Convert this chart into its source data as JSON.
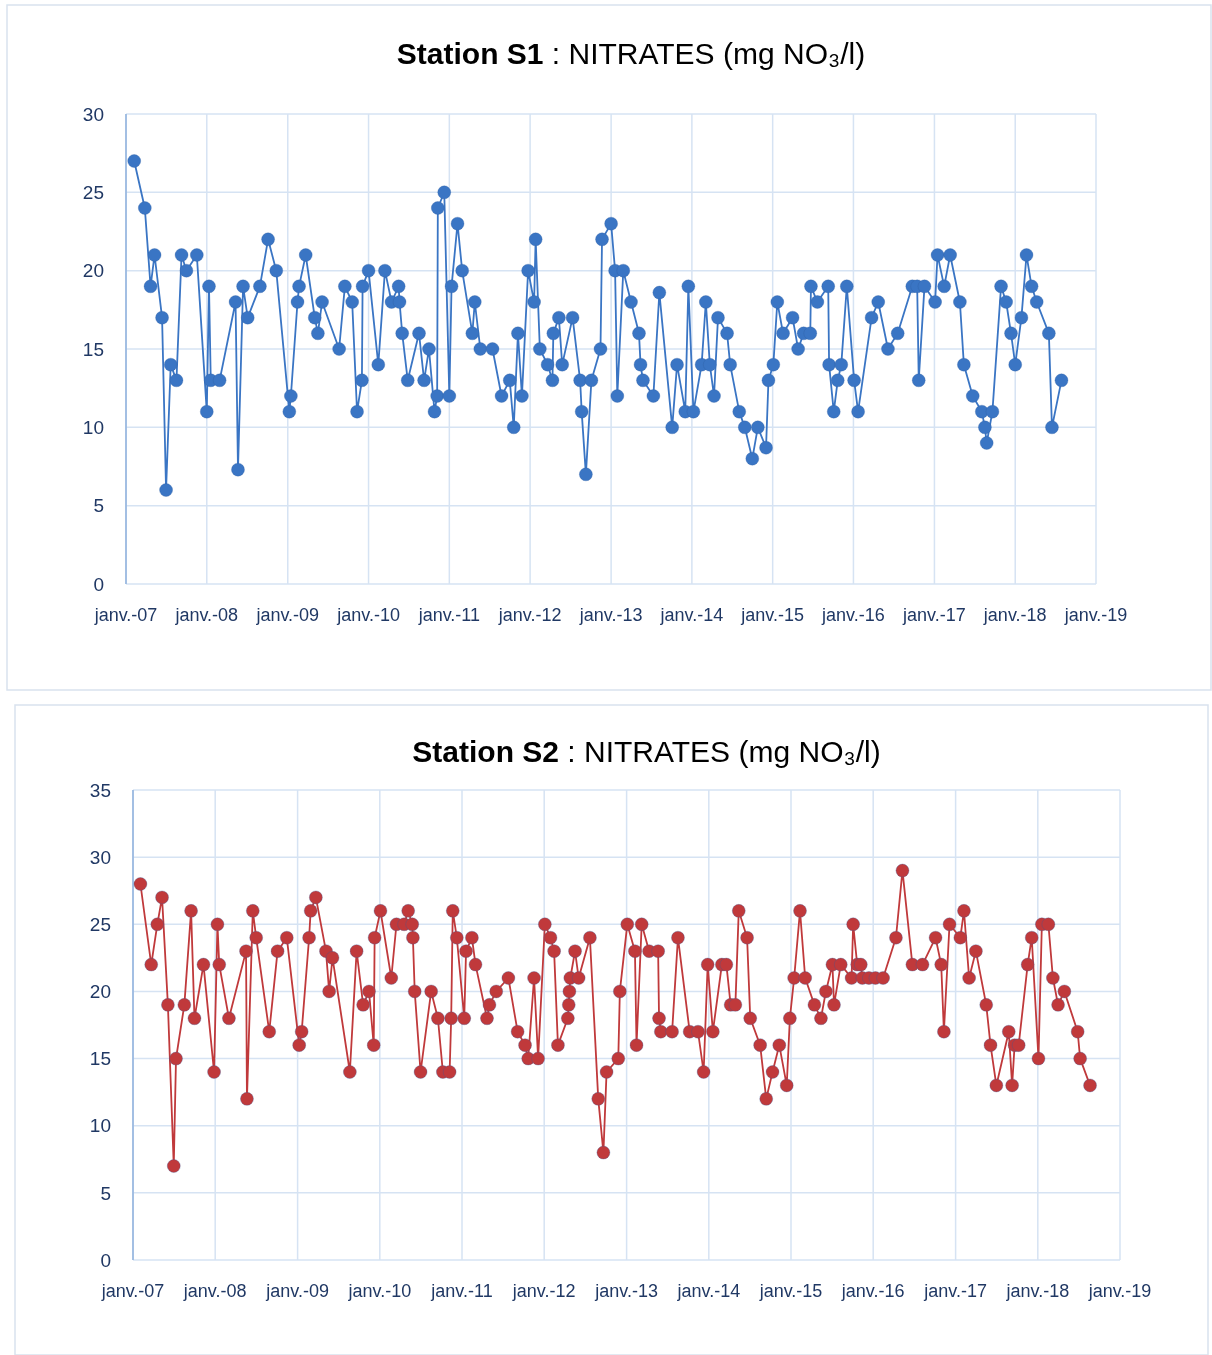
{
  "chart_data": [
    {
      "type": "line",
      "title": "Station S1 : NITRATES  (mg NO₃/l)",
      "xlim": [
        "2007-01",
        "2019-01"
      ],
      "xticks": [
        {
          "value": "2007-01",
          "label": "janv.-07"
        },
        {
          "value": "2008-01",
          "label": "janv.-08"
        },
        {
          "value": "2009-01",
          "label": "janv.-09"
        },
        {
          "value": "2010-01",
          "label": "janv.-10"
        },
        {
          "value": "2011-01",
          "label": "janv.-11"
        },
        {
          "value": "2012-01",
          "label": "janv.-12"
        },
        {
          "value": "2013-01",
          "label": "janv.-13"
        },
        {
          "value": "2014-01",
          "label": "janv.-14"
        },
        {
          "value": "2015-01",
          "label": "janv.-15"
        },
        {
          "value": "2016-01",
          "label": "janv.-16"
        },
        {
          "value": "2017-01",
          "label": "janv.-17"
        },
        {
          "value": "2018-01",
          "label": "janv.-18"
        },
        {
          "value": "2019-01",
          "label": "janv.-19"
        }
      ],
      "ylim": [
        0,
        30
      ],
      "yticks": [
        0,
        5,
        10,
        15,
        20,
        25,
        30
      ],
      "grid": true,
      "marker": "circle",
      "line_style": "solid",
      "series": [
        {
          "color": "#3a75c4",
          "x": [
            "2007-02-07",
            "2007-03-27",
            "2007-04-22",
            "2007-05-10",
            "2007-06-13",
            "2007-07-01",
            "2007-07-22",
            "2007-08-17",
            "2007-09-09",
            "2007-10-01",
            "2007-11-17",
            "2008-01-01",
            "2008-01-11",
            "2008-01-19",
            "2008-02-28",
            "2008-05-10",
            "2008-05-21",
            "2008-06-13",
            "2008-07-04",
            "2008-08-28",
            "2008-10-04",
            "2008-11-10",
            "2009-01-08",
            "2009-01-15",
            "2009-02-14",
            "2009-02-21",
            "2009-03-23",
            "2009-05-03",
            "2009-05-17",
            "2009-06-05",
            "2009-08-21",
            "2009-09-16",
            "2009-10-19",
            "2009-11-10",
            "2009-12-02",
            "2009-12-05",
            "2010-01-01",
            "2010-02-14",
            "2010-03-16",
            "2010-04-15",
            "2010-05-17",
            "2010-05-21",
            "2010-06-02",
            "2010-06-27",
            "2010-08-17",
            "2010-09-09",
            "2010-10-01",
            "2010-10-26",
            "2010-11-07",
            "2010-11-10",
            "2010-12-09",
            "2011-01-01",
            "2011-01-11",
            "2011-02-07",
            "2011-02-28",
            "2011-04-15",
            "2011-04-26",
            "2011-05-21",
            "2011-07-15",
            "2011-08-25",
            "2011-10-01",
            "2011-10-19",
            "2011-11-07",
            "2011-11-25",
            "2011-12-23",
            "2012-01-19",
            "2012-01-26",
            "2012-02-14",
            "2012-03-20",
            "2012-04-11",
            "2012-04-15",
            "2012-05-10",
            "2012-05-25",
            "2012-07-11",
            "2012-08-14",
            "2012-08-21",
            "2012-09-09",
            "2012-10-04",
            "2012-11-14",
            "2012-11-21",
            "2013-01-01",
            "2013-01-19",
            "2013-01-29",
            "2013-02-25",
            "2013-04-01",
            "2013-05-07",
            "2013-05-14",
            "2013-05-25",
            "2013-07-11",
            "2013-08-07",
            "2013-10-04",
            "2013-10-26",
            "2013-12-02",
            "2013-12-16",
            "2014-01-08",
            "2014-02-14",
            "2014-03-05",
            "2014-03-23",
            "2014-04-11",
            "2014-04-29",
            "2014-06-09",
            "2014-06-23",
            "2014-08-03",
            "2014-08-28",
            "2014-10-01",
            "2014-10-26",
            "2014-12-02",
            "2014-12-13",
            "2015-01-04",
            "2015-01-22",
            "2015-02-17",
            "2015-04-01",
            "2015-04-26",
            "2015-05-21",
            "2015-06-20",
            "2015-06-23",
            "2015-07-22",
            "2015-09-09",
            "2015-09-13",
            "2015-10-04",
            "2015-10-22",
            "2015-11-07",
            "2015-12-02",
            "2016-01-04",
            "2016-01-22",
            "2016-03-23",
            "2016-04-22",
            "2016-06-05",
            "2016-07-19",
            "2016-09-23",
            "2016-10-15",
            "2016-10-22",
            "2016-11-17",
            "2017-01-04",
            "2017-01-15",
            "2017-02-14",
            "2017-03-13",
            "2017-04-26",
            "2017-05-14",
            "2017-06-23",
            "2017-08-03",
            "2017-08-17",
            "2017-08-25",
            "2017-09-20",
            "2017-10-29",
            "2017-11-21",
            "2017-12-13",
            "2018-01-01",
            "2018-01-29",
            "2018-02-21",
            "2018-03-16",
            "2018-04-08",
            "2018-06-02",
            "2018-06-16",
            "2018-07-29"
          ],
          "values": [
            27,
            24,
            19,
            21,
            17,
            6,
            14,
            13,
            21,
            20,
            21,
            11,
            19,
            13,
            13,
            18,
            7.3,
            19,
            17,
            19,
            22,
            20,
            11,
            12,
            18,
            19,
            21,
            17,
            16,
            18,
            15,
            19,
            18,
            11,
            13,
            19,
            20,
            14,
            20,
            18,
            19,
            18,
            16,
            13,
            16,
            13,
            15,
            11,
            12,
            24,
            25,
            12,
            19,
            23,
            20,
            16,
            18,
            15,
            15,
            12,
            13,
            10,
            16,
            12,
            20,
            18,
            22,
            15,
            14,
            13,
            16,
            17,
            14,
            17,
            13,
            11,
            7,
            13,
            15,
            22,
            23,
            20,
            12,
            20,
            18,
            16,
            14,
            13,
            12,
            18.6,
            10,
            14,
            11,
            19,
            11,
            14,
            18,
            14,
            12,
            17,
            16,
            14,
            11,
            10,
            8,
            10,
            8.7,
            13,
            14,
            18,
            16,
            17,
            15,
            16,
            16,
            19,
            18,
            19,
            14,
            11,
            13,
            14,
            19,
            13,
            11,
            17,
            18,
            15,
            16,
            19,
            19,
            13,
            19,
            18,
            21,
            19,
            21,
            18,
            14,
            12,
            11,
            10,
            9,
            11,
            19,
            18,
            16,
            14,
            17,
            21,
            19,
            18,
            16,
            10,
            13
          ]
        }
      ]
    },
    {
      "type": "line",
      "title": "Station S2 : NITRATES (mg NO₃/l)",
      "xlim": [
        "2007-01",
        "2019-01"
      ],
      "xticks": [
        {
          "value": "2007-01",
          "label": "janv.-07"
        },
        {
          "value": "2008-01",
          "label": "janv.-08"
        },
        {
          "value": "2009-01",
          "label": "janv.-09"
        },
        {
          "value": "2010-01",
          "label": "janv.-10"
        },
        {
          "value": "2011-01",
          "label": "janv.-11"
        },
        {
          "value": "2012-01",
          "label": "janv.-12"
        },
        {
          "value": "2013-01",
          "label": "janv.-13"
        },
        {
          "value": "2014-01",
          "label": "janv.-14"
        },
        {
          "value": "2015-01",
          "label": "janv.-15"
        },
        {
          "value": "2016-01",
          "label": "janv.-16"
        },
        {
          "value": "2017-01",
          "label": "janv.-17"
        },
        {
          "value": "2018-01",
          "label": "janv.-18"
        },
        {
          "value": "2019-01",
          "label": "janv.-19"
        }
      ],
      "ylim": [
        0,
        35
      ],
      "yticks": [
        0,
        5,
        10,
        15,
        20,
        25,
        30,
        35
      ],
      "grid": true,
      "marker": "circle",
      "line_style": "solid",
      "series": [
        {
          "color": "#c0393b",
          "x": [
            "2007-02-03",
            "2007-03-23",
            "2007-04-19",
            "2007-05-10",
            "2007-06-05",
            "2007-07-01",
            "2007-07-11",
            "2007-08-17",
            "2007-09-16",
            "2007-10-01",
            "2007-11-10",
            "2007-12-27",
            "2008-01-11",
            "2008-01-19",
            "2008-03-02",
            "2008-05-17",
            "2008-05-21",
            "2008-06-16",
            "2008-07-01",
            "2008-08-28",
            "2008-10-04",
            "2008-11-14",
            "2009-01-08",
            "2009-01-19",
            "2009-02-21",
            "2009-02-28",
            "2009-03-23",
            "2009-05-07",
            "2009-05-21",
            "2009-06-05",
            "2009-08-21",
            "2009-09-20",
            "2009-10-19",
            "2009-11-14",
            "2009-12-05",
            "2009-12-09",
            "2010-01-04",
            "2010-02-21",
            "2010-03-16",
            "2010-04-19",
            "2010-05-07",
            "2010-05-25",
            "2010-05-28",
            "2010-06-05",
            "2010-07-01",
            "2010-08-17",
            "2010-09-16",
            "2010-10-08",
            "2010-11-07",
            "2010-11-14",
            "2010-11-21",
            "2010-12-09",
            "2011-01-11",
            "2011-01-19",
            "2011-02-14",
            "2011-03-02",
            "2011-04-22",
            "2011-05-03",
            "2011-06-02",
            "2011-07-26",
            "2011-09-05",
            "2011-10-08",
            "2011-10-22",
            "2011-11-17",
            "2011-12-05",
            "2012-01-04",
            "2012-01-29",
            "2012-02-14",
            "2012-03-02",
            "2012-04-15",
            "2012-04-19",
            "2012-04-22",
            "2012-04-26",
            "2012-05-17",
            "2012-06-02",
            "2012-07-22",
            "2012-08-28",
            "2012-09-20",
            "2012-10-04",
            "2012-11-25",
            "2012-12-02",
            "2013-01-04",
            "2013-02-07",
            "2013-02-14",
            "2013-03-09",
            "2013-04-11",
            "2013-05-21",
            "2013-05-25",
            "2013-06-02",
            "2013-07-22",
            "2013-08-17",
            "2013-10-08",
            "2013-11-14",
            "2013-12-09",
            "2013-12-27",
            "2014-01-19",
            "2014-02-28",
            "2014-03-20",
            "2014-04-08",
            "2014-04-29",
            "2014-05-14",
            "2014-06-20",
            "2014-07-04",
            "2014-08-17",
            "2014-09-13",
            "2014-10-11",
            "2014-11-10",
            "2014-12-13",
            "2014-12-27",
            "2015-01-15",
            "2015-02-10",
            "2015-03-05",
            "2015-04-15",
            "2015-05-14",
            "2015-06-05",
            "2015-07-04",
            "2015-07-11",
            "2015-08-10",
            "2015-09-27",
            "2015-10-04",
            "2015-10-22",
            "2015-11-07",
            "2015-11-14",
            "2015-12-13",
            "2016-01-11",
            "2016-02-14",
            "2016-04-11",
            "2016-05-10",
            "2016-06-23",
            "2016-08-07",
            "2016-10-04",
            "2016-10-29",
            "2016-11-10",
            "2016-12-05",
            "2017-01-22",
            "2017-02-07",
            "2017-03-02",
            "2017-04-01",
            "2017-05-17",
            "2017-06-05",
            "2017-07-01",
            "2017-08-25",
            "2017-09-09",
            "2017-09-20",
            "2017-10-08",
            "2017-11-17",
            "2017-12-05",
            "2018-01-04",
            "2018-01-19",
            "2018-02-17",
            "2018-03-09",
            "2018-04-01",
            "2018-04-29",
            "2018-06-27",
            "2018-07-08",
            "2018-08-21"
          ],
          "values": [
            28,
            22,
            25,
            27,
            19,
            7,
            15,
            19,
            26,
            18,
            22,
            14,
            25,
            22,
            18,
            23,
            12,
            26,
            24,
            17,
            23,
            24,
            16,
            17,
            24,
            26,
            27,
            23,
            20,
            22.5,
            14,
            23,
            19,
            20,
            16,
            24,
            26,
            21,
            25,
            25,
            26,
            25,
            24,
            20,
            14,
            20,
            18,
            14,
            14,
            18,
            26,
            24,
            18,
            23,
            24,
            22,
            18,
            19,
            20,
            21,
            17,
            16,
            15,
            21,
            15,
            25,
            24,
            23,
            16,
            18,
            19,
            20,
            21,
            23,
            21,
            24,
            12,
            8,
            14,
            15,
            20,
            25,
            23,
            16,
            25,
            23,
            23,
            18,
            17,
            17,
            24,
            17,
            17,
            14,
            22,
            17,
            22,
            22,
            19,
            19,
            26,
            24,
            18,
            16,
            12,
            14,
            16,
            13,
            18,
            21,
            26,
            21,
            19,
            18,
            20,
            22,
            19,
            22,
            21,
            25,
            22,
            22,
            21,
            21,
            21,
            21,
            24,
            29,
            22,
            22,
            24,
            22,
            17,
            25,
            24,
            26,
            21,
            23,
            19,
            16,
            13,
            17,
            13,
            16,
            16,
            22,
            24,
            15,
            25,
            25,
            21,
            19,
            20,
            17,
            15,
            13
          ]
        }
      ]
    }
  ]
}
